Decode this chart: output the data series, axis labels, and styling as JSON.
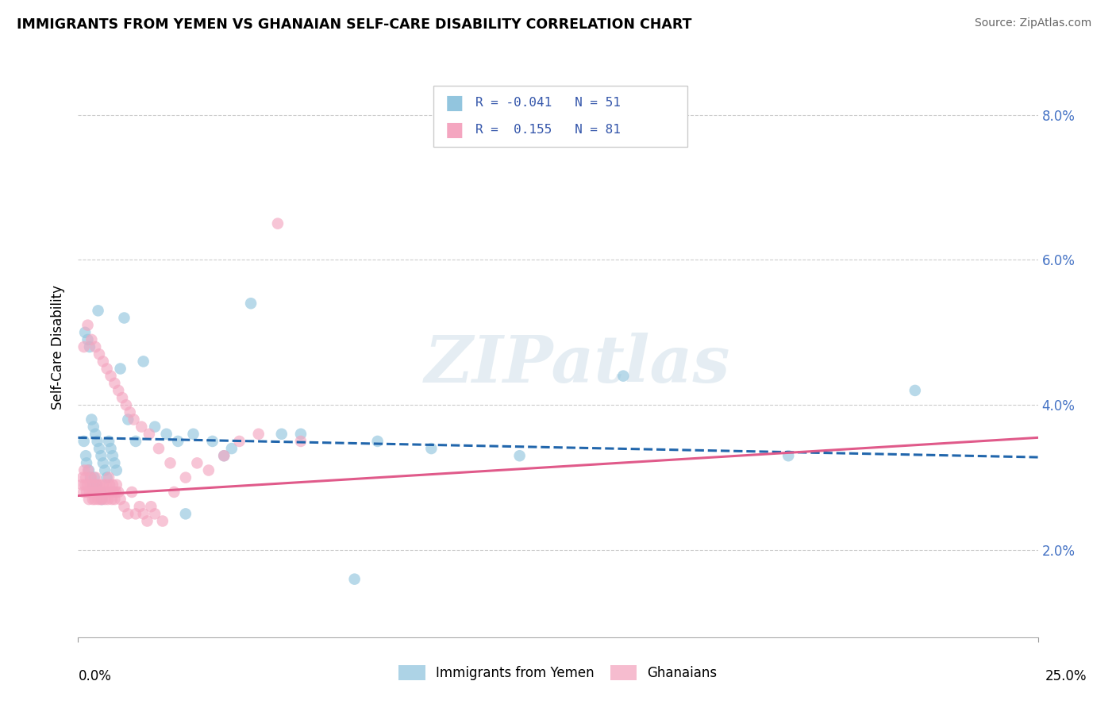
{
  "title": "IMMIGRANTS FROM YEMEN VS GHANAIAN SELF-CARE DISABILITY CORRELATION CHART",
  "source": "Source: ZipAtlas.com",
  "ylabel": "Self-Care Disability",
  "xmin": 0.0,
  "xmax": 25.0,
  "ymin": 0.8,
  "ymax": 8.8,
  "ytick_vals": [
    2.0,
    4.0,
    6.0,
    8.0
  ],
  "ytick_labels": [
    "2.0%",
    "4.0%",
    "6.0%",
    "8.0%"
  ],
  "blue_color": "#92c5de",
  "pink_color": "#f4a6c0",
  "blue_line_color": "#2166ac",
  "pink_line_color": "#e05a8a",
  "blue_line_start_y": 3.55,
  "blue_line_end_y": 3.28,
  "pink_line_start_y": 2.75,
  "pink_line_end_y": 3.55,
  "watermark_text": "ZIPatlas",
  "blue_scatter_x": [
    0.15,
    0.18,
    0.2,
    0.22,
    0.25,
    0.28,
    0.3,
    0.32,
    0.35,
    0.38,
    0.4,
    0.42,
    0.45,
    0.48,
    0.5,
    0.52,
    0.55,
    0.58,
    0.6,
    0.62,
    0.65,
    0.7,
    0.75,
    0.8,
    0.85,
    0.9,
    0.95,
    1.0,
    1.1,
    1.2,
    1.3,
    1.5,
    1.7,
    2.0,
    2.3,
    2.6,
    3.0,
    3.5,
    4.5,
    5.8,
    7.8,
    9.2,
    11.5,
    14.2,
    18.5,
    21.8,
    3.8,
    2.8,
    4.0,
    5.3,
    7.2
  ],
  "blue_scatter_y": [
    3.5,
    5.0,
    3.3,
    3.2,
    4.9,
    3.1,
    4.8,
    3.0,
    3.8,
    2.9,
    3.7,
    3.0,
    3.6,
    2.9,
    3.5,
    5.3,
    3.4,
    2.8,
    3.3,
    2.7,
    3.2,
    3.1,
    3.0,
    3.5,
    3.4,
    3.3,
    3.2,
    3.1,
    4.5,
    5.2,
    3.8,
    3.5,
    4.6,
    3.7,
    3.6,
    3.5,
    3.6,
    3.5,
    5.4,
    3.6,
    3.5,
    3.4,
    3.3,
    4.4,
    3.3,
    4.2,
    3.3,
    2.5,
    3.4,
    3.6,
    1.6
  ],
  "pink_scatter_x": [
    0.1,
    0.12,
    0.14,
    0.16,
    0.18,
    0.2,
    0.22,
    0.24,
    0.26,
    0.28,
    0.3,
    0.32,
    0.34,
    0.36,
    0.38,
    0.4,
    0.42,
    0.44,
    0.46,
    0.48,
    0.5,
    0.52,
    0.54,
    0.56,
    0.58,
    0.6,
    0.62,
    0.65,
    0.68,
    0.7,
    0.72,
    0.75,
    0.78,
    0.8,
    0.82,
    0.85,
    0.88,
    0.9,
    0.92,
    0.95,
    0.98,
    1.0,
    1.05,
    1.1,
    1.2,
    1.3,
    1.4,
    1.5,
    1.6,
    1.7,
    1.8,
    1.9,
    2.0,
    2.2,
    2.5,
    2.8,
    3.1,
    3.4,
    3.8,
    4.2,
    4.7,
    5.2,
    0.15,
    0.25,
    0.35,
    0.45,
    0.55,
    0.65,
    0.75,
    0.85,
    0.95,
    1.05,
    1.15,
    1.25,
    1.35,
    1.45,
    1.65,
    1.85,
    2.1,
    2.4,
    5.8
  ],
  "pink_scatter_y": [
    2.9,
    3.0,
    2.8,
    3.1,
    2.9,
    3.0,
    2.8,
    2.9,
    3.1,
    2.7,
    2.8,
    2.9,
    3.0,
    2.8,
    2.7,
    2.9,
    2.8,
    2.7,
    3.0,
    2.8,
    2.9,
    2.7,
    2.8,
    2.9,
    2.7,
    2.8,
    2.7,
    2.9,
    2.8,
    2.7,
    2.9,
    2.8,
    2.7,
    3.0,
    2.9,
    2.8,
    2.7,
    2.9,
    2.8,
    2.7,
    2.8,
    2.9,
    2.8,
    2.7,
    2.6,
    2.5,
    2.8,
    2.5,
    2.6,
    2.5,
    2.4,
    2.6,
    2.5,
    2.4,
    2.8,
    3.0,
    3.2,
    3.1,
    3.3,
    3.5,
    3.6,
    6.5,
    4.8,
    5.1,
    4.9,
    4.8,
    4.7,
    4.6,
    4.5,
    4.4,
    4.3,
    4.2,
    4.1,
    4.0,
    3.9,
    3.8,
    3.7,
    3.6,
    3.4,
    3.2,
    3.5
  ],
  "legend_entries": [
    {
      "color": "#92c5de",
      "text": "R = -0.041   N = 51"
    },
    {
      "color": "#f4a6c0",
      "text": "R =  0.155   N = 81"
    }
  ],
  "bottom_legend": [
    {
      "color": "#92c5de",
      "label": "Immigrants from Yemen"
    },
    {
      "color": "#f4a6c0",
      "label": "Ghanaians"
    }
  ]
}
